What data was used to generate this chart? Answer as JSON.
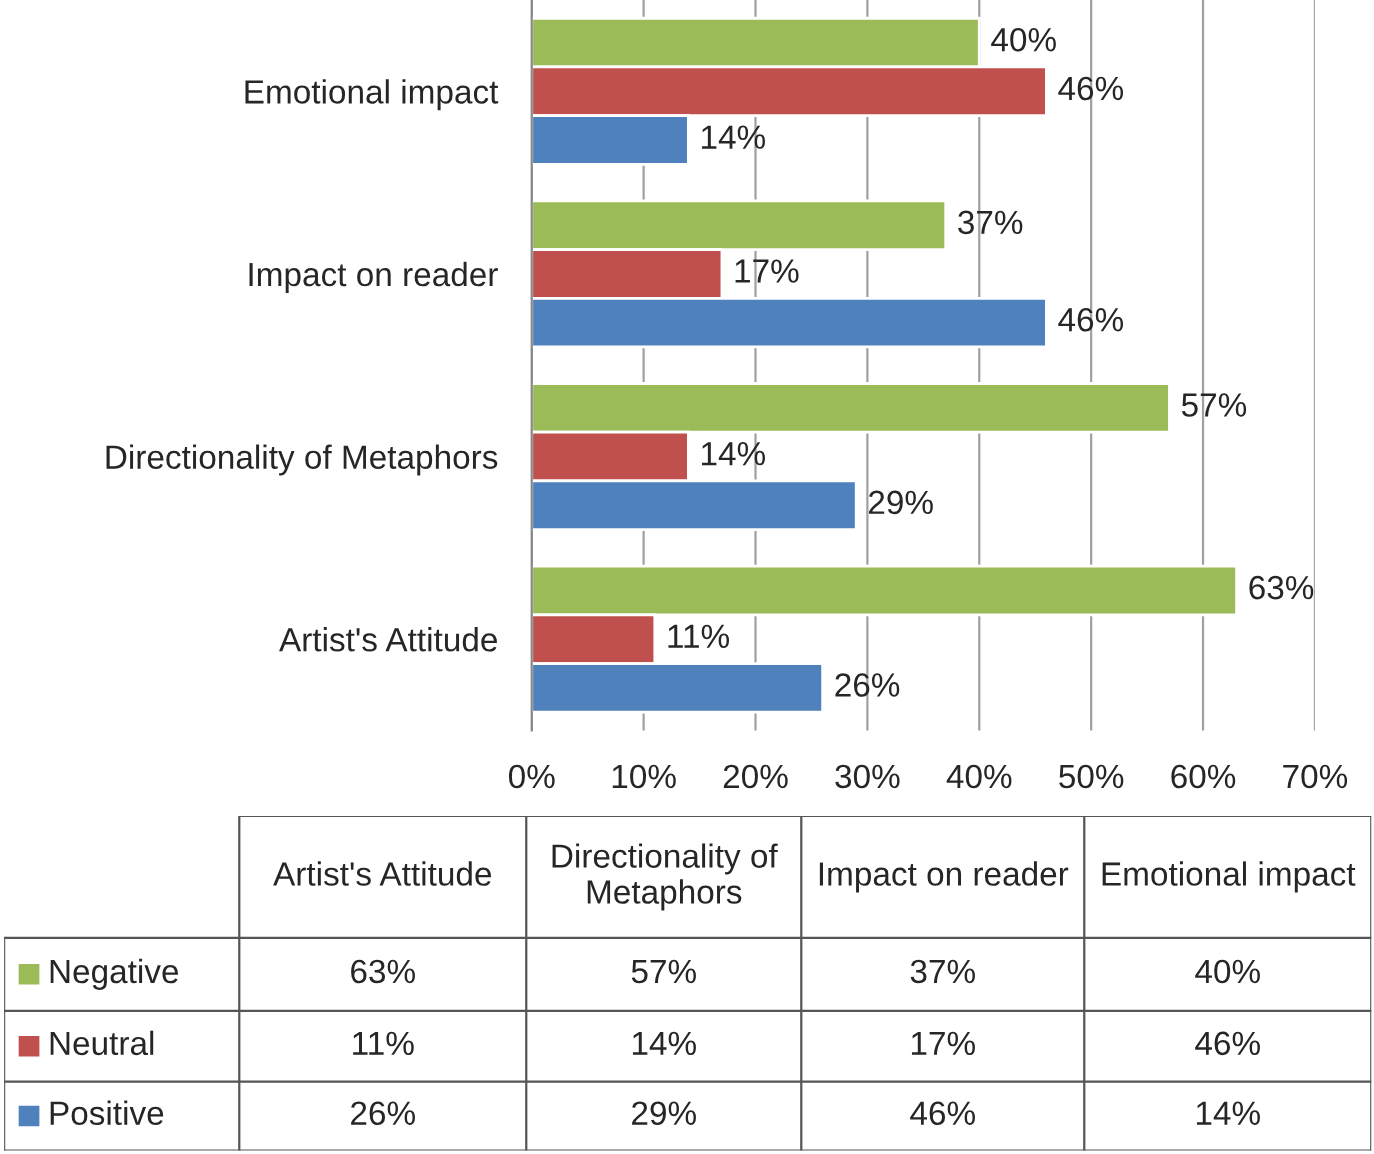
{
  "chart_data": {
    "type": "bar",
    "orientation": "horizontal",
    "categories": [
      "Emotional impact",
      "Impact on reader",
      "Directionality of Metaphors",
      "Artist's Attitude"
    ],
    "series": [
      {
        "name": "Negative",
        "color": "#9bbb59",
        "values": [
          40,
          37,
          57,
          63
        ],
        "value_labels": [
          "40%",
          "37%",
          "57%",
          "63%"
        ]
      },
      {
        "name": "Neutral",
        "color": "#c0504d",
        "values": [
          46,
          17,
          14,
          11
        ],
        "value_labels": [
          "46%",
          "17%",
          "14%",
          "11%"
        ]
      },
      {
        "name": "Positive",
        "color": "#4f81bd",
        "values": [
          14,
          46,
          29,
          26
        ],
        "value_labels": [
          "14%",
          "46%",
          "29%",
          "26%"
        ]
      }
    ],
    "xlim": [
      0,
      70
    ],
    "xticks": [
      {
        "value": 0,
        "label": "0%"
      },
      {
        "value": 10,
        "label": "10%"
      },
      {
        "value": 20,
        "label": "20%"
      },
      {
        "value": 30,
        "label": "30%"
      },
      {
        "value": 40,
        "label": "40%"
      },
      {
        "value": 50,
        "label": "50%"
      },
      {
        "value": 60,
        "label": "60%"
      },
      {
        "value": 70,
        "label": "70%"
      }
    ],
    "grid": "x",
    "legend": "bottom"
  }
}
